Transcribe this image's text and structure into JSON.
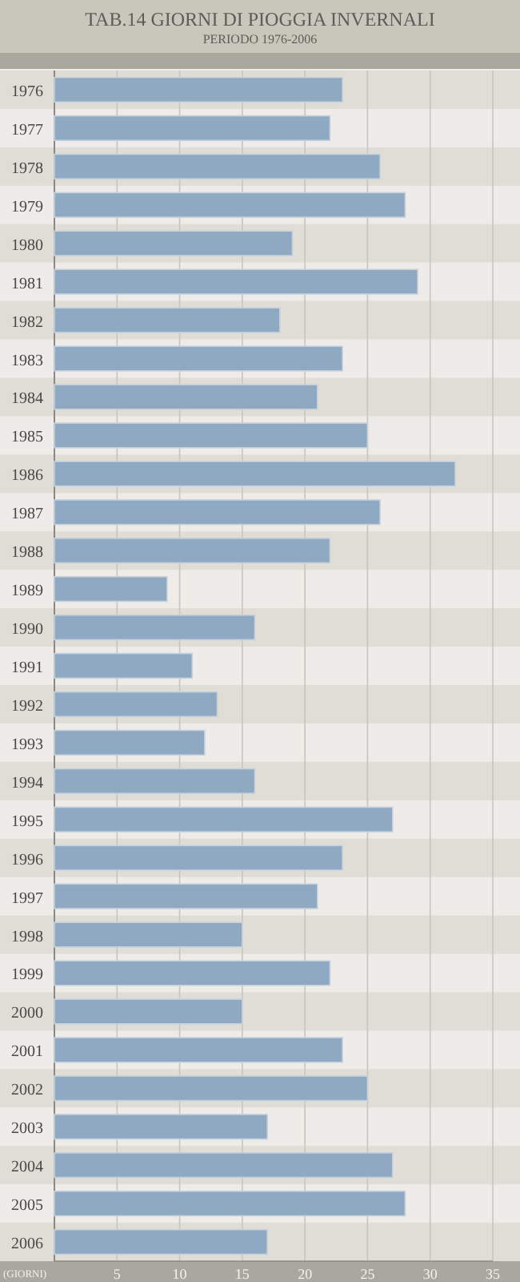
{
  "chart_data": {
    "type": "bar",
    "orientation": "horizontal",
    "title": "TAB.14  GIORNI DI PIOGGIA INVERNALI",
    "subtitle": "PERIODO 1976-2006",
    "xlabel": "(GIORNI)",
    "categories": [
      "1976",
      "1977",
      "1978",
      "1979",
      "1980",
      "1981",
      "1982",
      "1983",
      "1984",
      "1985",
      "1986",
      "1987",
      "1988",
      "1989",
      "1990",
      "1991",
      "1992",
      "1993",
      "1994",
      "1995",
      "1996",
      "1997",
      "1998",
      "1999",
      "2000",
      "2001",
      "2002",
      "2003",
      "2004",
      "2005",
      "2006"
    ],
    "values": [
      23,
      22,
      26,
      28,
      19,
      29,
      18,
      23,
      21,
      25,
      32,
      26,
      22,
      9,
      16,
      11,
      13,
      12,
      16,
      27,
      23,
      21,
      15,
      22,
      15,
      23,
      25,
      17,
      27,
      28,
      17
    ],
    "color": "#8fa9c2",
    "xlim": [
      0,
      35
    ],
    "xticks": [
      5,
      10,
      15,
      20,
      25,
      30,
      35
    ],
    "grid": "x"
  }
}
